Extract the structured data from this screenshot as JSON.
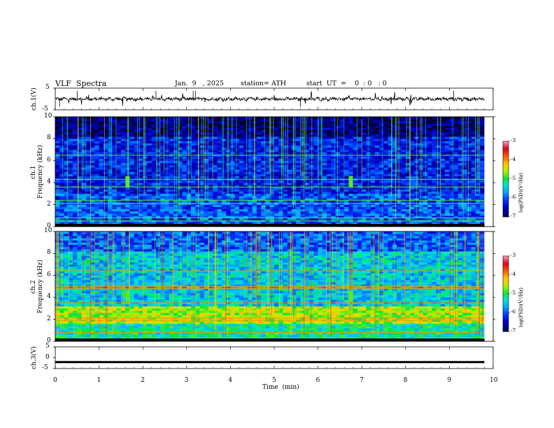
{
  "header": {
    "title": "VLF  Spectra",
    "date": "Jan.  9   , 2025",
    "station": "station= ATH",
    "start": "start  UT  =    0  : 0   : 0"
  },
  "chart_data": [
    {
      "type": "line",
      "panel": "ch1-waveform",
      "ylabel": "ch.1(V)",
      "ylim": [
        -5,
        5
      ],
      "yticks": [
        5,
        -5
      ],
      "xlim": [
        0,
        10
      ],
      "signal": "noisy waveform centered near 0 V, amplitude about ±0.8 V with occasional spikes"
    },
    {
      "type": "heatmap",
      "panel": "ch1-spectrogram",
      "ylabel": "ch.1\nFrequency  (kHz)",
      "ylim": [
        0,
        10
      ],
      "yticks": [
        0,
        2,
        4,
        6,
        8,
        10
      ],
      "xlim": [
        0,
        10
      ],
      "colorbar": {
        "label": "log(PSD)(V²/Hz)",
        "range": [
          -7,
          -3
        ],
        "ticks": [
          -3,
          -4,
          -5,
          -6,
          -7
        ]
      },
      "features": {
        "background_level": -6.3,
        "narrowband_lines_khz": [
          6.5,
          4.3,
          3.6,
          2.4,
          2.1,
          0.8,
          0.5
        ],
        "burst_times_min": [
          1.65,
          6.75
        ]
      }
    },
    {
      "type": "heatmap",
      "panel": "ch2-spectrogram",
      "ylabel": "ch.2\nFrequency  (kHz)",
      "ylim": [
        0,
        10
      ],
      "yticks": [
        0,
        2,
        4,
        6,
        8,
        10
      ],
      "xlim": [
        0,
        10
      ],
      "colorbar": {
        "label": "log(PSD)(V²/Hz)",
        "range": [
          -7,
          -3
        ],
        "ticks": [
          -3,
          -4,
          -5,
          -6,
          -7
        ]
      },
      "features": {
        "background_level": -5.5,
        "narrowband_lines_khz": [
          6.4,
          5.0,
          4.8,
          3.5,
          2.1,
          1.9,
          0.8
        ],
        "burst_times_min": [
          1.65,
          6.75
        ]
      }
    },
    {
      "type": "line",
      "panel": "ch3-waveform",
      "ylabel": "ch.3(V)",
      "ylim": [
        -5,
        5
      ],
      "yticks": [
        5,
        0,
        -5
      ],
      "xlim": [
        0,
        10
      ],
      "signal": "flat line near -2 V",
      "level": -2
    }
  ],
  "x_axis": {
    "label": "Time  (min)",
    "ticks": [
      "0",
      "1",
      "2",
      "3",
      "4",
      "5",
      "6",
      "7",
      "8",
      "9",
      "10"
    ]
  }
}
